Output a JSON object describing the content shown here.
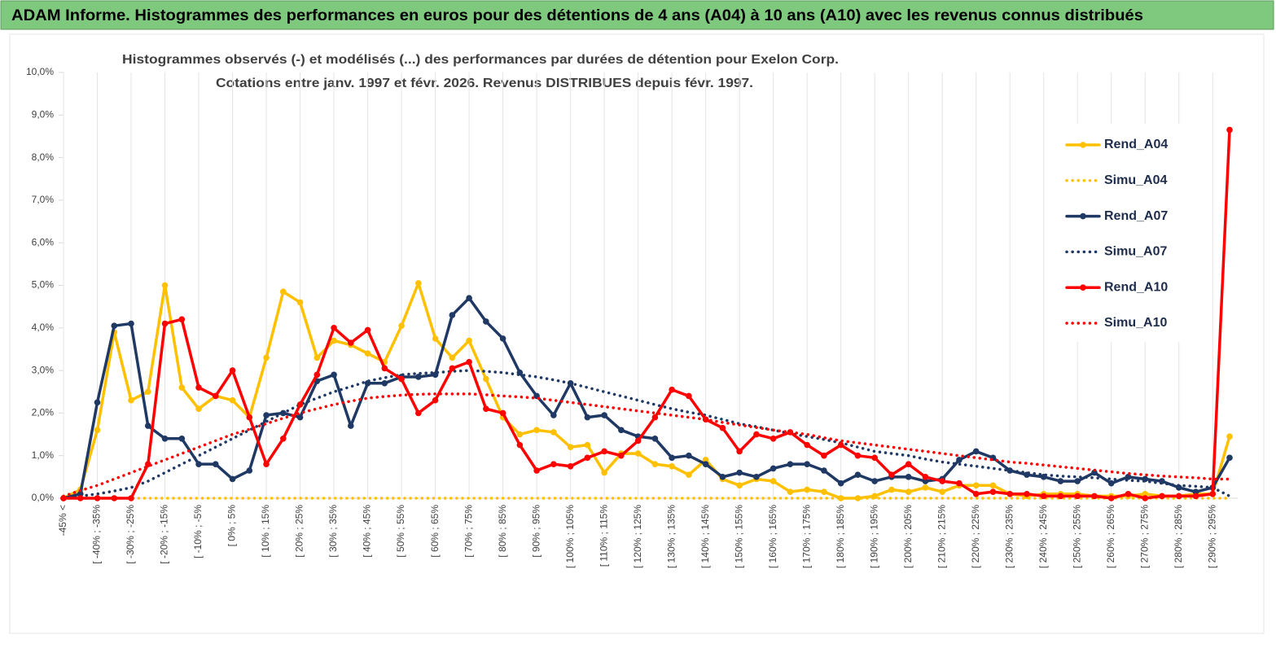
{
  "header": {
    "title": "ADAM Informe. Histogrammes des performances en euros pour des détentions de 4 ans (A04) à 10 ans (A10) avec les revenus connus distribués"
  },
  "chart_data": {
    "type": "line",
    "title": "Histogrammes observés (-) et modélisés (...) des performances par durées de détention pour Exelon Corp.",
    "subtitle": "Cotations entre janv. 1997 et févr. 2026. Revenus DISTRIBUES depuis févr. 1997.",
    "categories": [
      "-45% <",
      null,
      "[ -40% ; -35%",
      null,
      "[ -30% ; -25%",
      null,
      "[ -20% ; -15%",
      null,
      "[ -10% ; -5%",
      null,
      "[ 0% ; 5%",
      null,
      "[ 10% ; 15%",
      null,
      "[ 20% ; 25%",
      null,
      "[ 30% ; 35%",
      null,
      "[ 40% ; 45%",
      null,
      "[ 50% ; 55%",
      null,
      "[ 60% ; 65%",
      null,
      "[ 70% ; 75%",
      null,
      "[ 80% ; 85%",
      null,
      "[ 90% ; 95%",
      null,
      "[ 100% ; 105%",
      null,
      "[ 110% ; 115%",
      null,
      "[ 120% ; 125%",
      null,
      "[ 130% ; 135%",
      null,
      "[ 140% ; 145%",
      null,
      "[ 150% ; 155%",
      null,
      "[ 160% ; 165%",
      null,
      "[ 170% ; 175%",
      null,
      "[ 180% ; 185%",
      null,
      "[ 190% ; 195%",
      null,
      "[ 200% ; 205%",
      null,
      "[ 210% ; 215%",
      null,
      "[ 220% ; 225%",
      null,
      "[ 230% ; 235%",
      null,
      "[ 240% ; 245%",
      null,
      "[ 250% ; 255%",
      null,
      "[ 260% ; 265%",
      null,
      "[ 270% ; 275%",
      null,
      "[ 280% ; 285%",
      null,
      "[ 290% ; 295%",
      null
    ],
    "series": [
      {
        "name": "Rend_A04",
        "color": "#FFC000",
        "line_style": "solid",
        "markers": true,
        "values": [
          0,
          0.2,
          1.6,
          3.9,
          2.3,
          2.5,
          5.0,
          2.6,
          2.1,
          2.4,
          2.3,
          1.9,
          3.3,
          4.85,
          4.6,
          3.3,
          3.7,
          3.6,
          3.4,
          3.2,
          4.05,
          5.05,
          3.75,
          3.3,
          3.7,
          2.8,
          1.9,
          1.5,
          1.6,
          1.55,
          1.2,
          1.25,
          0.6,
          1.05,
          1.05,
          0.8,
          0.75,
          0.55,
          0.9,
          0.45,
          0.3,
          0.45,
          0.4,
          0.15,
          0.2,
          0.15,
          0,
          0,
          0.05,
          0.2,
          0.15,
          0.25,
          0.15,
          0.3,
          0.3,
          0.3,
          0.1,
          0.05,
          0.1,
          0.1,
          0.1,
          0.05,
          0.05,
          0.05,
          0.1,
          0.05,
          0.05,
          0.1,
          0.1,
          1.45
        ]
      },
      {
        "name": "Simu_A04",
        "color": "#FFC000",
        "line_style": "dotted",
        "markers": false,
        "values": [
          0,
          0,
          0,
          0,
          0,
          0,
          0,
          0,
          0,
          0,
          0,
          0,
          0,
          0,
          0,
          0,
          0,
          0,
          0,
          0,
          0,
          0,
          0,
          0,
          0,
          0,
          0,
          0,
          0,
          0,
          0,
          0,
          0,
          0,
          0,
          0,
          0,
          0,
          0,
          0,
          0,
          0,
          0,
          0,
          0,
          0,
          0,
          0,
          0,
          0,
          0,
          0,
          0,
          0,
          0,
          0,
          0,
          0,
          0,
          0,
          0,
          0,
          0,
          0,
          0,
          0,
          0,
          0,
          0,
          0
        ]
      },
      {
        "name": "Rend_A07",
        "color": "#1F3864",
        "line_style": "solid",
        "markers": true,
        "values": [
          0,
          0.1,
          2.25,
          4.05,
          4.1,
          1.7,
          1.4,
          1.4,
          0.8,
          0.8,
          0.45,
          0.65,
          1.95,
          2.0,
          1.9,
          2.75,
          2.9,
          1.7,
          2.7,
          2.7,
          2.85,
          2.85,
          2.9,
          4.3,
          4.7,
          4.15,
          3.75,
          2.95,
          2.4,
          1.95,
          2.7,
          1.9,
          1.95,
          1.6,
          1.45,
          1.4,
          0.95,
          1.0,
          0.8,
          0.5,
          0.6,
          0.5,
          0.7,
          0.8,
          0.8,
          0.65,
          0.35,
          0.55,
          0.4,
          0.5,
          0.5,
          0.4,
          0.45,
          0.9,
          1.1,
          0.95,
          0.65,
          0.55,
          0.5,
          0.4,
          0.4,
          0.6,
          0.35,
          0.5,
          0.45,
          0.4,
          0.25,
          0.15,
          0.25,
          0.95
        ]
      },
      {
        "name": "Simu_A07",
        "color": "#1F3864",
        "line_style": "dotted",
        "markers": false,
        "values": [
          0,
          0.05,
          0.1,
          0.17,
          0.25,
          0.4,
          0.6,
          0.8,
          1.0,
          1.2,
          1.4,
          1.6,
          1.8,
          2.0,
          2.2,
          2.35,
          2.5,
          2.62,
          2.75,
          2.83,
          2.9,
          2.93,
          2.95,
          2.98,
          3.0,
          2.98,
          2.95,
          2.9,
          2.85,
          2.78,
          2.7,
          2.6,
          2.5,
          2.4,
          2.3,
          2.2,
          2.1,
          2.02,
          1.95,
          1.85,
          1.75,
          1.68,
          1.6,
          1.52,
          1.45,
          1.38,
          1.3,
          1.2,
          1.1,
          1.05,
          1.0,
          0.92,
          0.85,
          0.8,
          0.75,
          0.7,
          0.65,
          0.6,
          0.55,
          0.52,
          0.5,
          0.48,
          0.45,
          0.42,
          0.4,
          0.35,
          0.3,
          0.28,
          0.25,
          0.05
        ]
      },
      {
        "name": "Rend_A10",
        "color": "#FF0000",
        "line_style": "solid",
        "markers": true,
        "values": [
          0,
          0,
          0,
          0,
          0,
          0.8,
          4.1,
          4.2,
          2.6,
          2.4,
          3.0,
          1.9,
          0.8,
          1.4,
          2.2,
          2.9,
          4.0,
          3.65,
          3.95,
          3.05,
          2.8,
          2.0,
          2.3,
          3.05,
          3.2,
          2.1,
          2.0,
          1.25,
          0.65,
          0.8,
          0.75,
          0.95,
          1.1,
          1.0,
          1.35,
          1.9,
          2.55,
          2.4,
          1.85,
          1.65,
          1.1,
          1.5,
          1.4,
          1.55,
          1.25,
          1.0,
          1.25,
          1.0,
          0.95,
          0.55,
          0.8,
          0.5,
          0.4,
          0.35,
          0.1,
          0.15,
          0.1,
          0.1,
          0.05,
          0.05,
          0.05,
          0.05,
          0,
          0.1,
          0,
          0.05,
          0.05,
          0.05,
          0.1,
          8.65
        ]
      },
      {
        "name": "Simu_A10",
        "color": "#FF0000",
        "line_style": "dotted",
        "markers": false,
        "values": [
          0.05,
          0.18,
          0.3,
          0.45,
          0.6,
          0.75,
          0.9,
          1.05,
          1.2,
          1.35,
          1.5,
          1.62,
          1.75,
          1.88,
          2.0,
          2.1,
          2.2,
          2.28,
          2.35,
          2.39,
          2.42,
          2.44,
          2.45,
          2.45,
          2.45,
          2.43,
          2.4,
          2.38,
          2.35,
          2.3,
          2.25,
          2.2,
          2.15,
          2.1,
          2.05,
          2.0,
          1.95,
          1.9,
          1.85,
          1.78,
          1.72,
          1.66,
          1.6,
          1.55,
          1.5,
          1.42,
          1.35,
          1.3,
          1.25,
          1.2,
          1.15,
          1.1,
          1.05,
          1.0,
          0.95,
          0.9,
          0.85,
          0.82,
          0.78,
          0.74,
          0.7,
          0.66,
          0.62,
          0.58,
          0.55,
          0.52,
          0.5,
          0.48,
          0.45,
          0.45
        ]
      }
    ],
    "ylim": [
      0,
      10
    ],
    "yticks": [
      {
        "value": 0,
        "label": "0,0%"
      },
      {
        "value": 1,
        "label": "1,0%"
      },
      {
        "value": 2,
        "label": "2,0%"
      },
      {
        "value": 3,
        "label": "3,0%"
      },
      {
        "value": 4,
        "label": "4,0%"
      },
      {
        "value": 5,
        "label": "5,0%"
      },
      {
        "value": 6,
        "label": "6,0%"
      },
      {
        "value": 7,
        "label": "7,0%"
      },
      {
        "value": 8,
        "label": "8,0%"
      },
      {
        "value": 9,
        "label": "9,0%"
      },
      {
        "value": 10,
        "label": "10,0%"
      }
    ],
    "legend": "right"
  }
}
